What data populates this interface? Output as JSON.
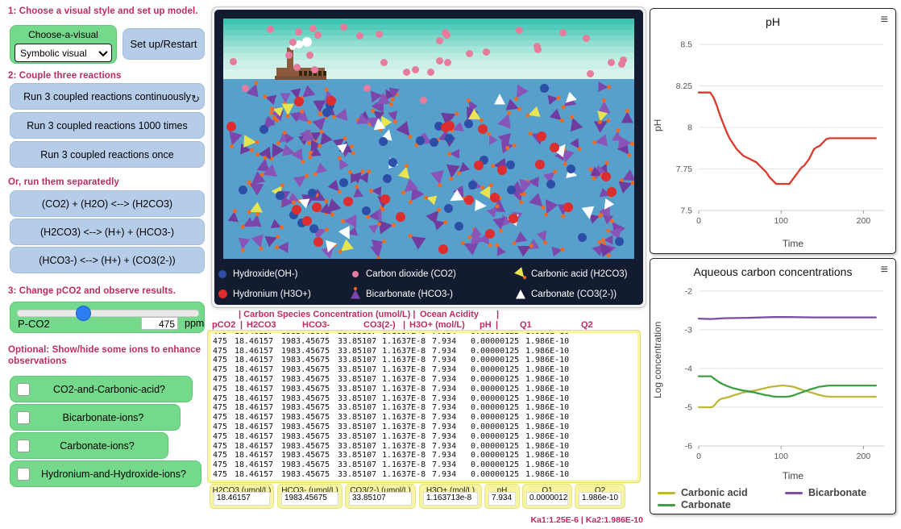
{
  "left_panel": {
    "note1": "1: Choose a visual style and set up model.",
    "chooser": {
      "label": "Choose-a-visual",
      "selected": "Symbolic visual"
    },
    "setup_button": "Set up/Restart",
    "note2": "2: Couple three reactions",
    "coupled_buttons": [
      "Run 3 coupled reactions continuously",
      "Run 3 coupled reactions 1000 times",
      "Run 3 coupled reactions once"
    ],
    "loop_icon": "↻",
    "note3": "Or, run them separatedly",
    "reaction_buttons": [
      "(CO2) + (H2O) <--> (H2CO3)",
      "(H2CO3) <--> (H+) + (HCO3-)",
      "(HCO3-) <--> (H+) + (CO3(2-))"
    ],
    "note4": "3: Change pCO2 and observe results.",
    "slider": {
      "label": "P-CO2",
      "value": "475",
      "unit": "ppm",
      "fraction": 0.35
    },
    "note5": "Optional:  Show/hide some ions to enhance observations",
    "toggles": [
      {
        "label": "CO2-and-Carbonic-acid?",
        "checked": false
      },
      {
        "label": "Bicarbonate-ions?",
        "checked": false
      },
      {
        "label": "Carbonate-ions?",
        "checked": false
      },
      {
        "label": "Hydronium-and-Hydroxide-ions?",
        "checked": false
      }
    ]
  },
  "view": {
    "legend": [
      {
        "label": "Hydroxide(OH-)",
        "color": "#2d4ea6",
        "shape": "circle"
      },
      {
        "label": "Hydronium (H3O+)",
        "color": "#dc2e2e",
        "shape": "circle"
      },
      {
        "label": "Carbon dioxide (CO2)",
        "color": "#e77b9c",
        "shape": "circle-small"
      },
      {
        "label": "Bicarbonate (HCO3-)",
        "color": "#7d46ad",
        "shape": "triangle-dot"
      },
      {
        "label": "Carbonic acid (H2CO3)",
        "color": "#e8e44f",
        "shape": "triangle-dot-rot"
      },
      {
        "label": "Carbonate (CO3(2-))",
        "color": "#ffffff",
        "shape": "triangle"
      }
    ],
    "colors": {
      "water": "#57a0cb",
      "orange_dot": "#f26a1f",
      "co2_pink": "#e77b9c",
      "bicarbonate_purple": "#7d46ad",
      "hydroxide_blue": "#2d4ea6",
      "hydronium_red": "#dc2e2e",
      "carbonic_yellow": "#e8e44f",
      "carbonate_white": "#ffffff",
      "factory_brown": "#8a5a3a"
    },
    "particle_counts": {
      "co2_sky": 33,
      "co2_water": 3,
      "bicarbonate": 165,
      "hydroxide": 30,
      "hydronium": 26,
      "carbonic_acid": 13,
      "carbonate": 16
    }
  },
  "table": {
    "header1": [
      "| Carbon Species Concentration (umol/L) |",
      "Ocean Acidity",
      "|"
    ],
    "header2": [
      "pCO2",
      "|",
      "H2CO3",
      "HCO3-",
      "CO3(2-)",
      "|",
      "H3O+ (mol/L)",
      "pH",
      "|",
      "Q1",
      "Q2"
    ],
    "row": [
      "475",
      "18.46157",
      "1983.45675",
      "33.85107",
      "1.1637E-8",
      "7.934",
      "0.00000125",
      "1.986E-10"
    ],
    "visible_rows": 17
  },
  "monitors": [
    {
      "label": "H2CO3 (umol/L)",
      "value": "18.46157"
    },
    {
      "label": "HCO3- (umol/L)",
      "value": "1983.45675"
    },
    {
      "label": "CO3(2-) (umol/L)",
      "value": "33.85107"
    },
    {
      "label": "H3O+ (mol/L)",
      "value": "1.163713e-8"
    },
    {
      "label": "pH",
      "value": "7.934"
    },
    {
      "label": "Q1",
      "value": "0.00000125"
    },
    {
      "label": "Q2",
      "value": "1.986e-10"
    }
  ],
  "ka_note": "Ka1:1.25E-6 | Ka2:1.986E-10",
  "chart_data": [
    {
      "type": "line",
      "title": "pH",
      "xlabel": "Time",
      "ylabel": "pH",
      "xlim": [
        0,
        225
      ],
      "ylim": [
        7.5,
        8.5
      ],
      "xticks": [
        0,
        100,
        200
      ],
      "yticks": [
        8.5,
        8.25,
        8,
        7.75,
        7.5
      ],
      "grid": true,
      "series": [
        {
          "name": "pH",
          "color": "#d93a2b",
          "x": [
            0,
            14,
            18,
            22,
            26,
            30,
            34,
            38,
            42,
            46,
            50,
            54,
            58,
            62,
            66,
            70,
            74,
            78,
            82,
            86,
            90,
            94,
            100,
            106,
            110,
            113,
            116,
            119,
            122,
            125,
            128,
            131,
            134,
            137,
            140,
            143,
            147,
            151,
            155,
            159,
            165,
            215
          ],
          "y": [
            8.21,
            8.21,
            8.18,
            8.13,
            8.07,
            8.02,
            7.97,
            7.93,
            7.9,
            7.87,
            7.85,
            7.83,
            7.82,
            7.81,
            7.8,
            7.79,
            7.77,
            7.75,
            7.73,
            7.7,
            7.68,
            7.66,
            7.66,
            7.66,
            7.66,
            7.68,
            7.7,
            7.72,
            7.74,
            7.76,
            7.77,
            7.79,
            7.81,
            7.84,
            7.87,
            7.88,
            7.89,
            7.91,
            7.93,
            7.935,
            7.935,
            7.935
          ]
        }
      ]
    },
    {
      "type": "line",
      "title": "Aqueous carbon concentrations",
      "xlabel": "Time",
      "ylabel": "Log concentration",
      "xlim": [
        0,
        225
      ],
      "ylim": [
        -6,
        -2
      ],
      "xticks": [
        0,
        100,
        200
      ],
      "yticks": [
        -2,
        -3,
        -4,
        -5,
        -6
      ],
      "grid": true,
      "legend_position": "bottom",
      "series": [
        {
          "name": "Carbonic acid",
          "color": "#bdb73a",
          "x": [
            0,
            16,
            19,
            22,
            25,
            28,
            32,
            36,
            40,
            44,
            48,
            52,
            56,
            60,
            64,
            68,
            72,
            76,
            80,
            84,
            88,
            92,
            96,
            100,
            104,
            108,
            112,
            116,
            120,
            124,
            128,
            132,
            136,
            140,
            144,
            148,
            152,
            156,
            160,
            215
          ],
          "y": [
            -5.0,
            -5.0,
            -4.95,
            -4.87,
            -4.81,
            -4.78,
            -4.76,
            -4.74,
            -4.71,
            -4.68,
            -4.66,
            -4.63,
            -4.61,
            -4.6,
            -4.58,
            -4.57,
            -4.55,
            -4.53,
            -4.51,
            -4.49,
            -4.47,
            -4.46,
            -4.45,
            -4.44,
            -4.44,
            -4.45,
            -4.46,
            -4.48,
            -4.51,
            -4.54,
            -4.57,
            -4.59,
            -4.62,
            -4.64,
            -4.67,
            -4.69,
            -4.71,
            -4.72,
            -4.73,
            -4.73
          ]
        },
        {
          "name": "Carbonate",
          "color": "#3d9e42",
          "x": [
            0,
            15,
            18,
            22,
            26,
            30,
            34,
            38,
            42,
            46,
            50,
            54,
            58,
            62,
            66,
            70,
            74,
            78,
            82,
            86,
            90,
            95,
            100,
            105,
            110,
            114,
            118,
            122,
            126,
            130,
            134,
            138,
            142,
            146,
            150,
            154,
            158,
            215
          ],
          "y": [
            -4.2,
            -4.2,
            -4.25,
            -4.31,
            -4.37,
            -4.41,
            -4.45,
            -4.48,
            -4.51,
            -4.53,
            -4.55,
            -4.57,
            -4.58,
            -4.6,
            -4.61,
            -4.63,
            -4.65,
            -4.67,
            -4.69,
            -4.7,
            -4.72,
            -4.73,
            -4.73,
            -4.73,
            -4.72,
            -4.7,
            -4.67,
            -4.64,
            -4.61,
            -4.58,
            -4.55,
            -4.52,
            -4.5,
            -4.47,
            -4.46,
            -4.45,
            -4.44,
            -4.44
          ]
        },
        {
          "name": "Bicarbonate",
          "color": "#7a4fa5",
          "x": [
            0,
            15,
            30,
            60,
            90,
            110,
            140,
            170,
            215
          ],
          "y": [
            -2.71,
            -2.72,
            -2.7,
            -2.69,
            -2.67,
            -2.67,
            -2.68,
            -2.68,
            -2.68
          ]
        }
      ]
    }
  ]
}
